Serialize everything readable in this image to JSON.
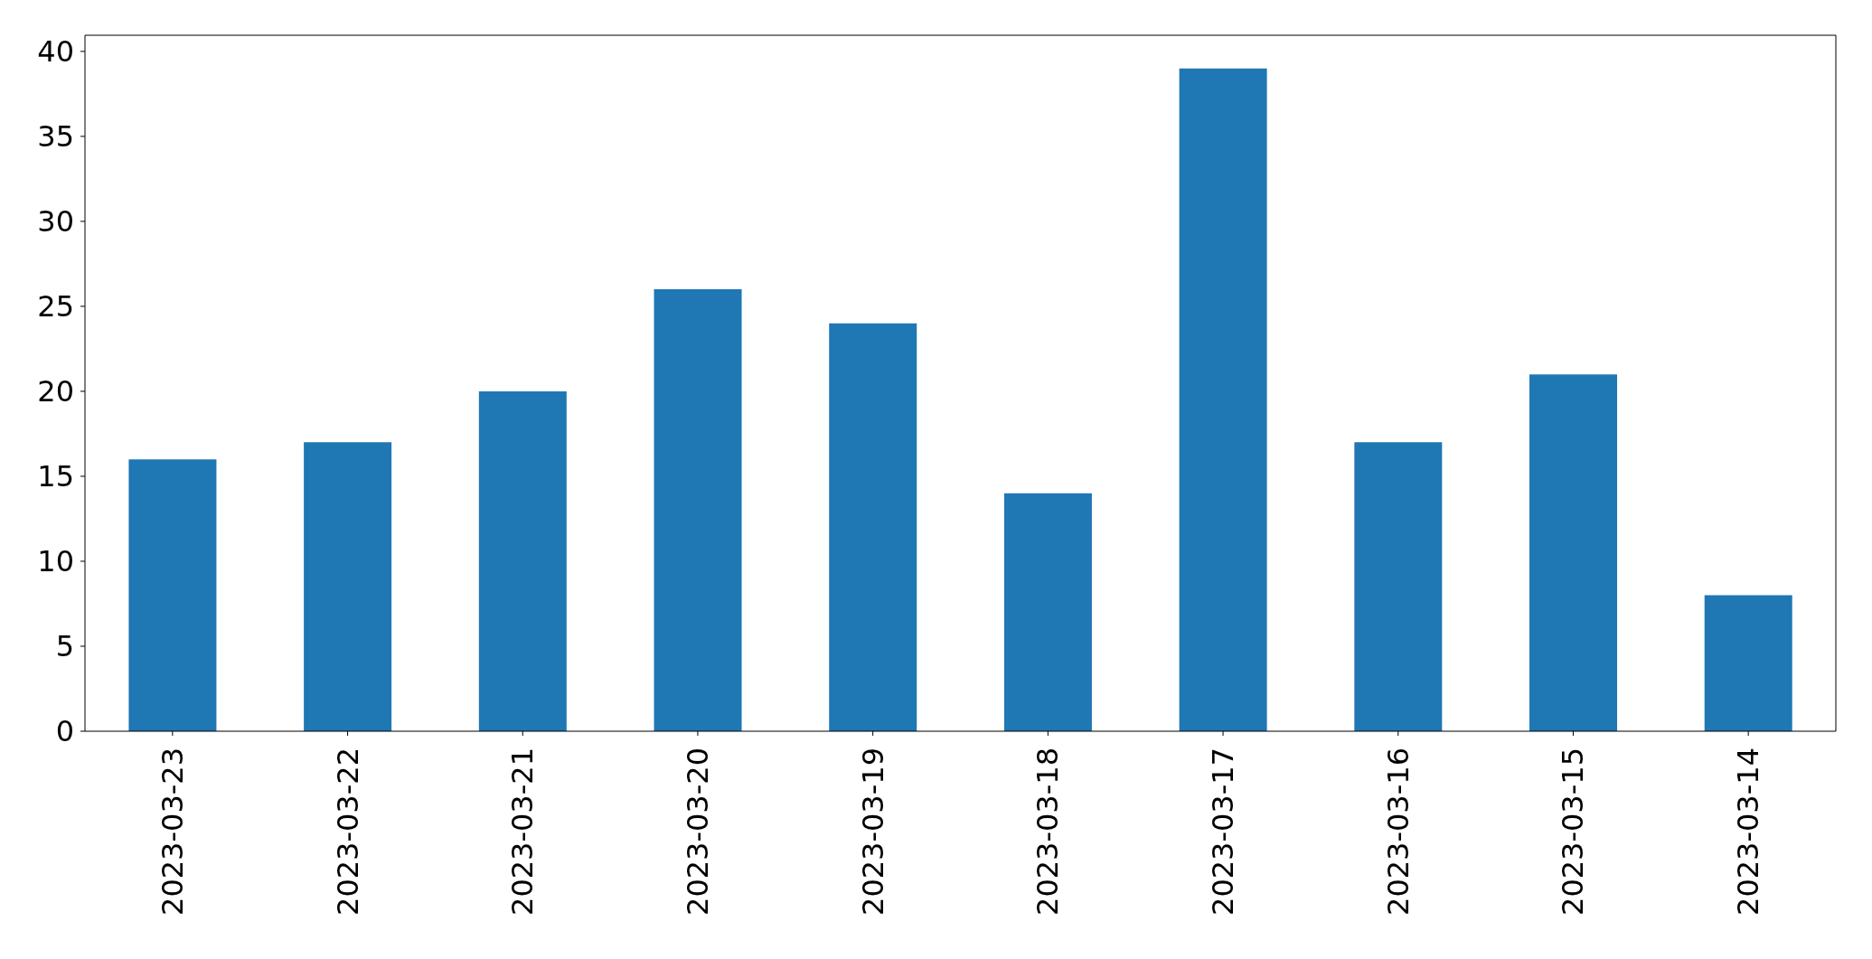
{
  "chart_data": {
    "type": "bar",
    "categories": [
      "2023-03-23",
      "2023-03-22",
      "2023-03-21",
      "2023-03-20",
      "2023-03-19",
      "2023-03-18",
      "2023-03-17",
      "2023-03-16",
      "2023-03-15",
      "2023-03-14"
    ],
    "values": [
      16,
      17,
      20,
      26,
      24,
      14,
      39,
      17,
      21,
      8
    ],
    "color": "#1f77b4",
    "ylim": [
      0,
      40.95
    ],
    "yticks": [
      0,
      5,
      10,
      15,
      20,
      25,
      30,
      35,
      40
    ]
  }
}
